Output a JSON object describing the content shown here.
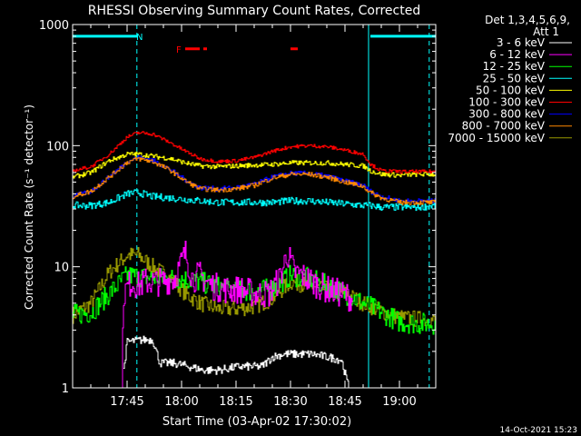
{
  "chart_data": {
    "type": "line",
    "title": "RHESSI Observing Summary Count Rates, Corrected",
    "xlabel": "Start Time (03-Apr-02 17:30:02)",
    "ylabel": "Corrected Count Rate (s⁻¹ detector⁻¹)",
    "y_scale": "log",
    "ylim": [
      1,
      1000
    ],
    "y_ticks": [
      {
        "value": 1,
        "label": "1"
      },
      {
        "value": 10,
        "label": "10"
      },
      {
        "value": 100,
        "label": "100"
      },
      {
        "value": 1000,
        "label": "1000"
      }
    ],
    "xlim_minutes": [
      0,
      100
    ],
    "x_ticks": [
      {
        "value": 15,
        "label": "17:45"
      },
      {
        "value": 30,
        "label": "18:00"
      },
      {
        "value": 45,
        "label": "18:15"
      },
      {
        "value": 60,
        "label": "18:30"
      },
      {
        "value": 75,
        "label": "18:45"
      },
      {
        "value": 90,
        "label": "19:00"
      }
    ],
    "legend_header": [
      "Det 1,3,4,5,6,9,",
      "Att 1"
    ],
    "legend_position": "right",
    "footer_date": "14-Oct-2021 15:23",
    "flags": [
      {
        "label": "N",
        "color": "#00ffff",
        "segments": [
          [
            0,
            18
          ],
          [
            82,
            100
          ]
        ],
        "level": 800
      },
      {
        "label": "F",
        "color": "#ff0000",
        "segments": [
          [
            31,
            35
          ],
          [
            36,
            37
          ],
          [
            60,
            62
          ]
        ],
        "level": 630
      }
    ],
    "night_lines": [
      0,
      17.7,
      81.5,
      98.2
    ],
    "series": [
      {
        "name": "3 - 6 keV",
        "color": "#ffffff",
        "x": [
          14,
          15,
          20,
          22,
          24,
          28,
          32,
          36,
          40,
          46,
          52,
          55,
          58,
          62,
          66,
          70,
          74,
          75,
          76
        ],
        "y": [
          1.4,
          2.4,
          2.5,
          2.5,
          1.6,
          1.6,
          1.5,
          1.4,
          1.4,
          1.5,
          1.5,
          1.8,
          1.9,
          1.9,
          1.9,
          1.8,
          1.7,
          1.3,
          1.0
        ]
      },
      {
        "name": "6 - 12 keV",
        "color": "#ff00ff",
        "x": [
          13.5,
          14,
          16,
          18,
          20,
          24,
          28,
          31,
          33,
          35,
          38,
          42,
          46,
          50,
          54,
          57,
          59,
          61,
          63,
          66,
          70,
          74,
          77
        ],
        "y": [
          1.0,
          6,
          7.5,
          7,
          7.5,
          7.5,
          8,
          13,
          8,
          8.5,
          7,
          6.5,
          6.5,
          6,
          6,
          8,
          13,
          9,
          8.5,
          7.5,
          6.5,
          6,
          5.5
        ]
      },
      {
        "name": "12 - 25 keV",
        "color": "#00ff00",
        "x": [
          0,
          5,
          10,
          15,
          20,
          25,
          30,
          35,
          40,
          45,
          50,
          55,
          60,
          65,
          70,
          75,
          80,
          85,
          90,
          95,
          100
        ],
        "y": [
          4,
          4.2,
          6,
          8.5,
          8.2,
          8,
          8,
          7.5,
          6.8,
          6.4,
          6.3,
          6.6,
          8.5,
          8,
          7,
          6,
          5,
          4.2,
          3.5,
          3.4,
          3.4
        ]
      },
      {
        "name": "25 - 50 keV",
        "color": "#00ffff",
        "x": [
          0,
          5,
          10,
          15,
          18,
          22,
          27,
          31,
          35,
          40,
          45,
          50,
          55,
          60,
          65,
          70,
          75,
          80,
          82,
          85,
          90,
          95,
          100
        ],
        "y": [
          32,
          32,
          34,
          40,
          41,
          38,
          37,
          36,
          35,
          34,
          34,
          34,
          34,
          35,
          35,
          34,
          33,
          32,
          32,
          31,
          31,
          31,
          32
        ]
      },
      {
        "name": "50 - 100 keV",
        "color": "#ffff00",
        "x": [
          0,
          5,
          10,
          15,
          18,
          22,
          27,
          31,
          35,
          40,
          45,
          50,
          55,
          60,
          65,
          70,
          75,
          80,
          82,
          85,
          90,
          95,
          100
        ],
        "y": [
          55,
          60,
          75,
          85,
          85,
          82,
          78,
          72,
          68,
          67,
          68,
          69,
          70,
          72,
          72,
          72,
          70,
          68,
          62,
          58,
          57,
          58,
          58
        ]
      },
      {
        "name": "100 - 300 keV",
        "color": "#ff0000",
        "x": [
          0,
          5,
          10,
          15,
          18,
          22,
          27,
          31,
          35,
          40,
          45,
          50,
          55,
          60,
          65,
          70,
          75,
          80,
          82,
          85,
          90,
          95,
          100
        ],
        "y": [
          62,
          67,
          85,
          118,
          128,
          125,
          105,
          90,
          78,
          74,
          75,
          80,
          90,
          98,
          100,
          98,
          92,
          85,
          70,
          62,
          61,
          61,
          61
        ]
      },
      {
        "name": "300 - 800 keV",
        "color": "#0000ff",
        "x": [
          0,
          5,
          10,
          15,
          18,
          22,
          27,
          31,
          35,
          40,
          45,
          50,
          55,
          60,
          65,
          70,
          75,
          80,
          82,
          85,
          90,
          95,
          100
        ],
        "y": [
          38,
          42,
          55,
          74,
          80,
          76,
          63,
          52,
          45,
          44,
          45,
          48,
          55,
          59,
          59,
          56,
          51,
          47,
          42,
          38,
          35,
          35,
          35
        ]
      },
      {
        "name": "800 - 7000 keV",
        "color": "#ff8800",
        "x": [
          0,
          5,
          10,
          15,
          18,
          22,
          27,
          31,
          35,
          40,
          45,
          50,
          55,
          60,
          65,
          70,
          75,
          80,
          82,
          85,
          90,
          95,
          100
        ],
        "y": [
          38,
          42,
          55,
          73,
          78,
          74,
          62,
          51,
          44,
          43,
          44,
          47,
          54,
          58,
          58,
          55,
          50,
          46,
          41,
          37,
          34,
          34,
          34
        ]
      },
      {
        "name": "7000 - 15000 keV",
        "color": "#999900",
        "x": [
          0,
          5,
          10,
          15,
          18,
          22,
          27,
          31,
          35,
          40,
          45,
          50,
          55,
          60,
          65,
          70,
          75,
          80,
          85,
          90,
          95,
          100
        ],
        "y": [
          4,
          5,
          9,
          12.5,
          12.5,
          10,
          8,
          6,
          5,
          4.5,
          4.5,
          4.7,
          5.5,
          7.5,
          7,
          6.5,
          6,
          5,
          4.3,
          3.8,
          3.7,
          3.6
        ]
      }
    ]
  }
}
